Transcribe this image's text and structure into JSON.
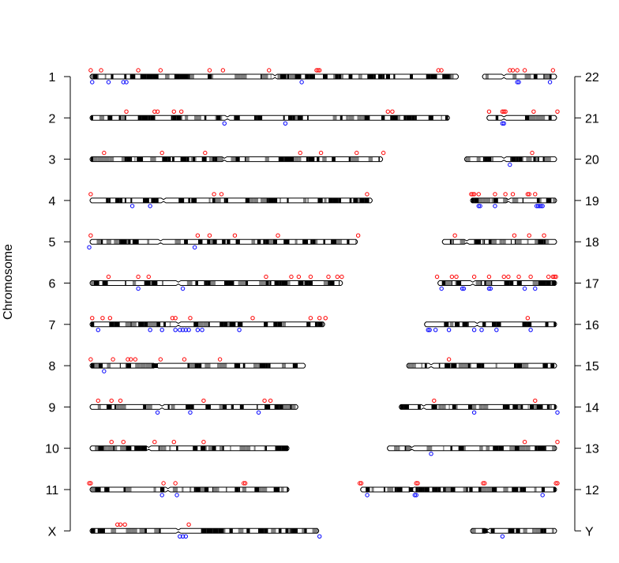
{
  "chart_data": {
    "type": "ideogram",
    "ylabel": "Chromosome",
    "left_axis_labels": [
      "1",
      "2",
      "3",
      "4",
      "5",
      "6",
      "7",
      "8",
      "9",
      "10",
      "11",
      "X"
    ],
    "right_axis_labels": [
      "22",
      "21",
      "20",
      "19",
      "18",
      "17",
      "16",
      "15",
      "14",
      "13",
      "12",
      "Y"
    ],
    "x_unit": "Mb",
    "colors": {
      "above": "#ff0000",
      "below": "#0000ff",
      "band_dark": "#000000",
      "band_mid": "#808080",
      "outline": "#000000"
    },
    "left_chromosomes": [
      {
        "name": "1",
        "length": 249,
        "centromere": 125,
        "above": [
          1,
          8,
          33,
          48,
          81,
          90,
          121,
          153,
          154,
          155,
          235,
          237
        ],
        "below": [
          2,
          13,
          23,
          25,
          143
        ]
      },
      {
        "name": "2",
        "length": 243,
        "centromere": 93,
        "above": [
          25,
          44,
          46,
          57,
          62,
          201,
          204
        ],
        "below": [
          91,
          132
        ]
      },
      {
        "name": "3",
        "length": 198,
        "centromere": 91,
        "above": [
          10,
          49,
          78,
          142,
          156,
          180,
          198
        ],
        "below": []
      },
      {
        "name": "4",
        "length": 191,
        "centromere": 50,
        "above": [
          1,
          84,
          89,
          187
        ],
        "below": [
          29,
          41
        ]
      },
      {
        "name": "5",
        "length": 181,
        "centromere": 48,
        "above": [
          1,
          73,
          81,
          98,
          127,
          181
        ],
        "below": [
          0,
          71
        ]
      },
      {
        "name": "6",
        "length": 171,
        "centromere": 60,
        "above": [
          13,
          33,
          40,
          119,
          136,
          141,
          149,
          161,
          167,
          170
        ],
        "below": [
          33,
          63
        ]
      },
      {
        "name": "7",
        "length": 159,
        "centromere": 60,
        "above": [
          2,
          9,
          14,
          56,
          58,
          68,
          110,
          149,
          155,
          159
        ],
        "below": [
          6,
          41,
          49,
          58,
          61,
          63,
          65,
          67,
          73,
          76,
          101
        ]
      },
      {
        "name": "8",
        "length": 146,
        "centromere": 45,
        "above": [
          1,
          16,
          26,
          28,
          31,
          48,
          64,
          88
        ],
        "below": [
          10
        ]
      },
      {
        "name": "9",
        "length": 141,
        "centromere": 49,
        "above": [
          6,
          15,
          21,
          77,
          118,
          122
        ],
        "below": [
          46,
          68,
          114
        ]
      },
      {
        "name": "10",
        "length": 135,
        "centromere": 40,
        "above": [
          15,
          23,
          44,
          57,
          77
        ],
        "below": []
      },
      {
        "name": "11",
        "length": 135,
        "centromere": 53,
        "above": [
          0,
          1,
          50,
          58,
          104,
          105
        ],
        "below": [
          49,
          59
        ]
      },
      {
        "name": "X",
        "length": 155,
        "centromere": 60,
        "above": [
          19,
          21,
          24,
          67
        ],
        "below": [
          61,
          63,
          65,
          155
        ]
      }
    ],
    "right_chromosomes": [
      {
        "name": "22",
        "length": 51,
        "centromere": 15,
        "above": [
          19,
          21,
          24,
          29,
          48
        ],
        "below": [
          24,
          25,
          46
        ]
      },
      {
        "name": "21",
        "length": 48,
        "centromere": 12,
        "above": [
          2,
          11,
          12,
          13,
          32,
          48
        ],
        "below": [
          11,
          12
        ]
      },
      {
        "name": "20",
        "length": 63,
        "centromere": 27,
        "above": [
          46
        ],
        "below": [
          31
        ]
      },
      {
        "name": "19",
        "length": 59,
        "centromere": 26,
        "above": [
          1,
          2,
          3,
          6,
          17,
          24,
          29,
          39,
          40,
          44
        ],
        "below": [
          6,
          7,
          17,
          45,
          46,
          47,
          48,
          49
        ]
      },
      {
        "name": "18",
        "length": 78,
        "centromere": 17,
        "above": [
          9,
          49,
          59,
          69
        ],
        "below": []
      },
      {
        "name": "17",
        "length": 81,
        "centromere": 24,
        "above": [
          0,
          10,
          13,
          25,
          35,
          45,
          48,
          55,
          63,
          75,
          78,
          79,
          80
        ],
        "below": [
          3,
          17,
          18,
          35,
          36,
          59,
          66
        ]
      },
      {
        "name": "16",
        "length": 90,
        "centromere": 36,
        "above": [
          70
        ],
        "below": [
          3,
          4,
          8,
          17,
          34,
          39,
          49,
          72
        ]
      },
      {
        "name": "15",
        "length": 102,
        "centromere": 17,
        "above": [
          29
        ],
        "below": []
      },
      {
        "name": "14",
        "length": 107,
        "centromere": 17,
        "above": [
          24,
          92
        ],
        "below": [
          51,
          107
        ]
      },
      {
        "name": "13",
        "length": 115,
        "centromere": 17,
        "above": [
          93,
          115
        ],
        "below": [
          30
        ]
      },
      {
        "name": "12",
        "length": 133,
        "centromere": 35,
        "above": [
          0,
          1,
          38,
          39,
          83,
          84,
          132,
          133
        ],
        "below": [
          5,
          37,
          38,
          123
        ]
      },
      {
        "name": "Y",
        "length": 59,
        "centromere": 12,
        "above": [],
        "below": [
          22
        ]
      }
    ]
  }
}
